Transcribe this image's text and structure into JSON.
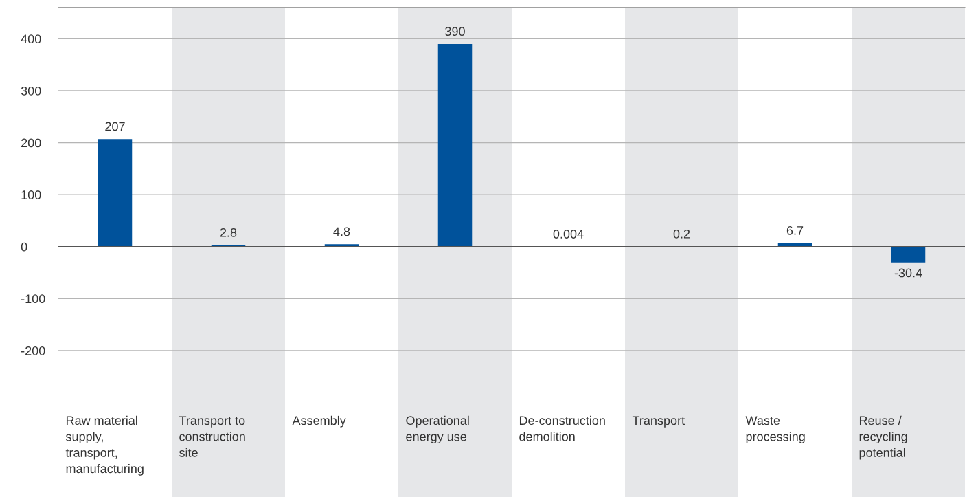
{
  "chart_data": {
    "type": "bar",
    "categories": [
      "Raw material\nsupply,\ntransport,\nmanufacturing",
      "Transport to\nconstruction\nsite",
      "Assembly",
      "Operational\nenergy use",
      "De-construction\ndemolition",
      "Transport",
      "Waste\nprocessing",
      "Reuse /\nrecycling\npotential"
    ],
    "values": [
      207,
      2.8,
      4.8,
      390,
      0.004,
      0.2,
      6.7,
      -30.4
    ],
    "color": "#00529b",
    "data_labels": true,
    "ylim": [
      -200,
      460
    ],
    "yticks": [
      -200,
      -100,
      0,
      100,
      200,
      300,
      400
    ],
    "grid": "y",
    "legend": false
  }
}
